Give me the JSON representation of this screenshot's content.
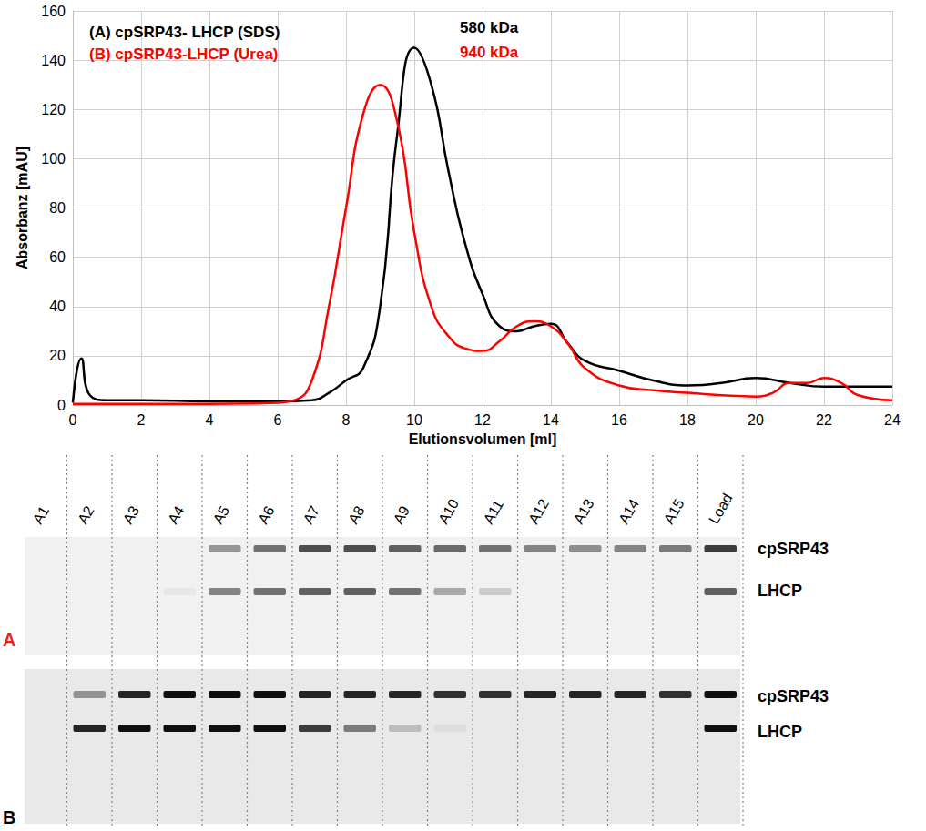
{
  "chart_data": {
    "type": "line",
    "xlabel": "Elutionsvolumen [ml]",
    "ylabel": "Absorbanz [mAU]",
    "xlim": [
      0,
      24
    ],
    "xticks": [
      0,
      2,
      4,
      6,
      8,
      10,
      12,
      14,
      16,
      18,
      20,
      22,
      24
    ],
    "ylim": [
      0,
      160
    ],
    "yticks": [
      0,
      20,
      40,
      60,
      80,
      100,
      120,
      140,
      160
    ],
    "grid": true,
    "legend": "upper left",
    "series": [
      {
        "name": "(A) cpSRP43- LHCP (SDS)",
        "color": "#000000",
        "annotation": "580 kDa",
        "x": [
          0,
          0.25,
          0.5,
          1,
          2,
          4,
          6,
          7,
          7.5,
          8,
          8.5,
          9,
          9.5,
          10,
          10.5,
          11,
          11.5,
          12,
          12.5,
          13,
          13.5,
          14,
          14.5,
          15,
          16,
          17,
          18,
          19,
          20,
          21,
          22,
          23,
          24
        ],
        "values": [
          1,
          19,
          4,
          2,
          2,
          1.5,
          1.5,
          2,
          5,
          10,
          15,
          40,
          110,
          145,
          130,
          95,
          65,
          45,
          32,
          30,
          32,
          33,
          25,
          18,
          14,
          10,
          8,
          9,
          11,
          9,
          7.5,
          7.5,
          7.5
        ]
      },
      {
        "name": "(B) cpSRP43-LHCP (Urea)",
        "color": "#ff0000",
        "annotation": "940 kDa",
        "x": [
          0,
          2,
          4,
          6,
          6.5,
          7,
          7.5,
          8,
          8.5,
          9,
          9.5,
          10,
          10.5,
          11,
          11.5,
          12,
          12.5,
          13,
          13.5,
          14,
          14.5,
          15,
          16,
          17,
          18,
          19,
          20,
          20.5,
          21,
          21.5,
          22,
          22.5,
          23,
          24
        ],
        "values": [
          0.5,
          0.5,
          0.5,
          1,
          2,
          10,
          40,
          80,
          118,
          130,
          115,
          70,
          40,
          28,
          23,
          22,
          26,
          32,
          34,
          32,
          25,
          15,
          8,
          6,
          5,
          4,
          3.5,
          5,
          9,
          9,
          11,
          9,
          4,
          2
        ]
      }
    ]
  },
  "gels": {
    "lanes": [
      "A1",
      "A2",
      "A3",
      "A4",
      "A5",
      "A6",
      "A7",
      "A8",
      "A9",
      "A10",
      "A11",
      "A12",
      "A13",
      "A14",
      "A15",
      "Load"
    ],
    "panels": [
      {
        "letter": "A",
        "color": "#e8221b",
        "band_labels": [
          "cpSRP43",
          "LHCP"
        ],
        "bands": [
          [
            0,
            0,
            0,
            0,
            0.5,
            0.7,
            0.9,
            0.9,
            0.8,
            0.75,
            0.7,
            0.6,
            0.55,
            0.6,
            0.65,
            1
          ],
          [
            0,
            0,
            0,
            0.05,
            0.6,
            0.7,
            0.8,
            0.8,
            0.7,
            0.4,
            0.2,
            0,
            0,
            0,
            0,
            0.8
          ]
        ]
      },
      {
        "letter": "B",
        "color": "#000000",
        "band_labels": [
          "cpSRP43",
          "LHCP"
        ],
        "bands": [
          [
            0,
            0.4,
            0.9,
            1,
            1,
            1,
            0.9,
            0.9,
            0.9,
            0.85,
            0.85,
            0.9,
            0.9,
            0.9,
            0.85,
            1
          ],
          [
            0,
            0.9,
            1,
            1,
            1,
            1,
            0.8,
            0.5,
            0.2,
            0.05,
            0,
            0,
            0,
            0,
            0,
            1
          ]
        ]
      }
    ]
  }
}
